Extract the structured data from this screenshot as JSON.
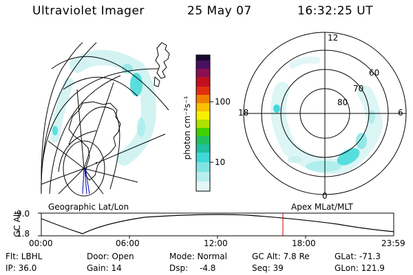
{
  "header": {
    "instrument": "Ultraviolet Imager",
    "date": "25 May 07",
    "time": "16:32:25 UT"
  },
  "maps": {
    "left_label": "Geographic Lat/Lon",
    "right_label": "Apex MLat/MLT"
  },
  "colorbar": {
    "unit_label": "photon cm⁻²s⁻¹",
    "tick_100": "100",
    "tick_10": "10"
  },
  "polar": {
    "mlt_12": "12",
    "mlt_18": "18",
    "mlt_6": "6",
    "mlt_0": "0",
    "lat_60": "60",
    "lat_70": "70",
    "lat_80": "80"
  },
  "altitude_plot": {
    "axis_label": "GC Alt",
    "y_top": "9.0",
    "y_bottom": "1.8",
    "times": [
      "00:00",
      "06:00",
      "12:00",
      "18:00",
      "23:59"
    ]
  },
  "info": {
    "flt": "Flt: LBHL",
    "door": "Door: Open",
    "mode": "Mode: Normal",
    "gc_alt": "GC Alt: 7.8 Re",
    "glat": "GLat: -71.3",
    "ip": "IP: 36.0",
    "gain": "Gain: 14",
    "dsp_label": "Dsp:",
    "dsp_value": "-4.8",
    "seq": "Seq: 39",
    "glon": "GLon: 121.9"
  },
  "colors": {
    "aurora": "#40d8d8",
    "aurora_light": "#a8ecec",
    "marker": "#c00000",
    "meridian": "#0000b0"
  }
}
